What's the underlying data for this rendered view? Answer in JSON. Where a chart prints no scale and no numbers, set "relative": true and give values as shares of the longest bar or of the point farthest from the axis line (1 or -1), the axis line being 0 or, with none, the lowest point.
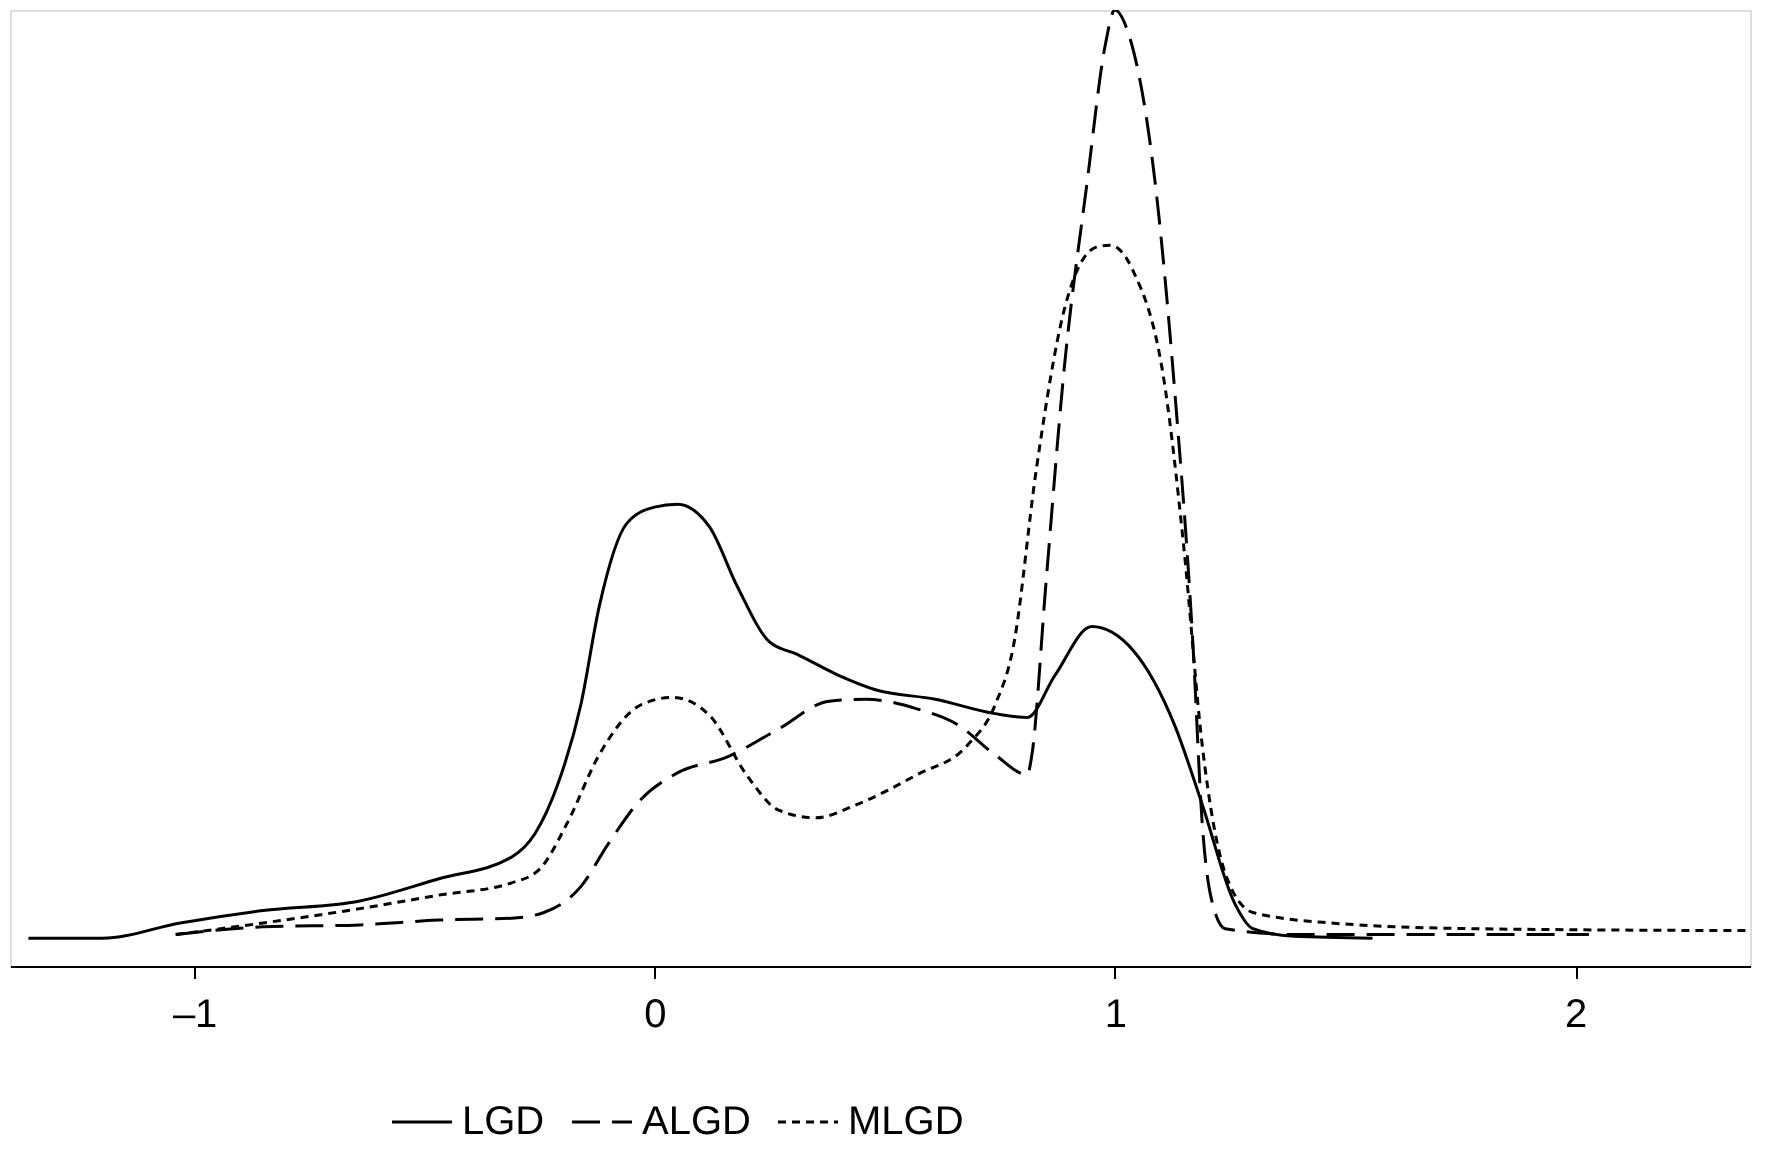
{
  "chart_data": {
    "type": "line",
    "relative": true,
    "legend": "bottom",
    "grid": false,
    "xlim": [
      -1.4,
      2.38
    ],
    "xticks": [
      {
        "value": -1,
        "label": "–1"
      },
      0,
      1,
      2
    ],
    "series": [
      {
        "name": "LGD",
        "color": "#000000",
        "line_style": "solid",
        "x": [
          -1.36,
          -1.2,
          -1.03,
          -0.85,
          -0.64,
          -0.47,
          -0.31,
          -0.26,
          -0.21,
          -0.16,
          -0.12,
          -0.06,
          0.0,
          0.05,
          0.12,
          0.18,
          0.25,
          0.31,
          0.4,
          0.48,
          0.61,
          0.74,
          0.81,
          0.87,
          0.95,
          1.04,
          1.13,
          1.19,
          1.26,
          1.3,
          1.39,
          1.56
        ],
        "values": [
          0.029,
          0.029,
          0.045,
          0.058,
          0.068,
          0.091,
          0.114,
          0.138,
          0.19,
          0.273,
          0.376,
          0.463,
          0.48,
          0.483,
          0.459,
          0.397,
          0.339,
          0.326,
          0.304,
          0.289,
          0.279,
          0.264,
          0.26,
          0.304,
          0.355,
          0.33,
          0.252,
          0.169,
          0.066,
          0.039,
          0.031,
          0.029
        ]
      },
      {
        "name": "ALGD",
        "color": "#000000",
        "line_style": "dashed",
        "x": [
          -1.04,
          -0.85,
          -0.64,
          -0.47,
          -0.31,
          -0.24,
          -0.16,
          -0.1,
          -0.03,
          0.05,
          0.16,
          0.27,
          0.38,
          0.46,
          0.57,
          0.66,
          0.74,
          0.81,
          0.82,
          0.85,
          0.89,
          0.94,
          0.98,
          1.0,
          1.03,
          1.09,
          1.13,
          1.17,
          1.19,
          1.21,
          1.24,
          1.39,
          1.65,
          1.91,
          2.03
        ],
        "values": [
          0.033,
          0.041,
          0.043,
          0.048,
          0.05,
          0.056,
          0.083,
          0.128,
          0.174,
          0.202,
          0.219,
          0.248,
          0.277,
          0.279,
          0.269,
          0.252,
          0.221,
          0.2,
          0.221,
          0.397,
          0.624,
          0.82,
          0.965,
          1.0,
          0.975,
          0.81,
          0.603,
          0.335,
          0.149,
          0.07,
          0.039,
          0.033,
          0.033,
          0.033,
          0.033
        ]
      },
      {
        "name": "MLGD",
        "color": "#000000",
        "line_style": "dotted",
        "x": [
          -1.04,
          -0.85,
          -0.64,
          -0.47,
          -0.31,
          -0.25,
          -0.19,
          -0.12,
          -0.03,
          0.04,
          0.12,
          0.2,
          0.27,
          0.35,
          0.44,
          0.57,
          0.68,
          0.74,
          0.78,
          0.83,
          0.89,
          0.96,
          0.99,
          1.04,
          1.11,
          1.15,
          1.19,
          1.24,
          1.3,
          1.47,
          1.78,
          2.38
        ],
        "values": [
          0.033,
          0.045,
          0.06,
          0.074,
          0.087,
          0.101,
          0.149,
          0.221,
          0.273,
          0.281,
          0.262,
          0.2,
          0.163,
          0.155,
          0.169,
          0.2,
          0.231,
          0.273,
          0.335,
          0.521,
          0.686,
          0.752,
          0.754,
          0.727,
          0.603,
          0.438,
          0.231,
          0.097,
          0.056,
          0.045,
          0.039,
          0.037
        ]
      }
    ]
  }
}
